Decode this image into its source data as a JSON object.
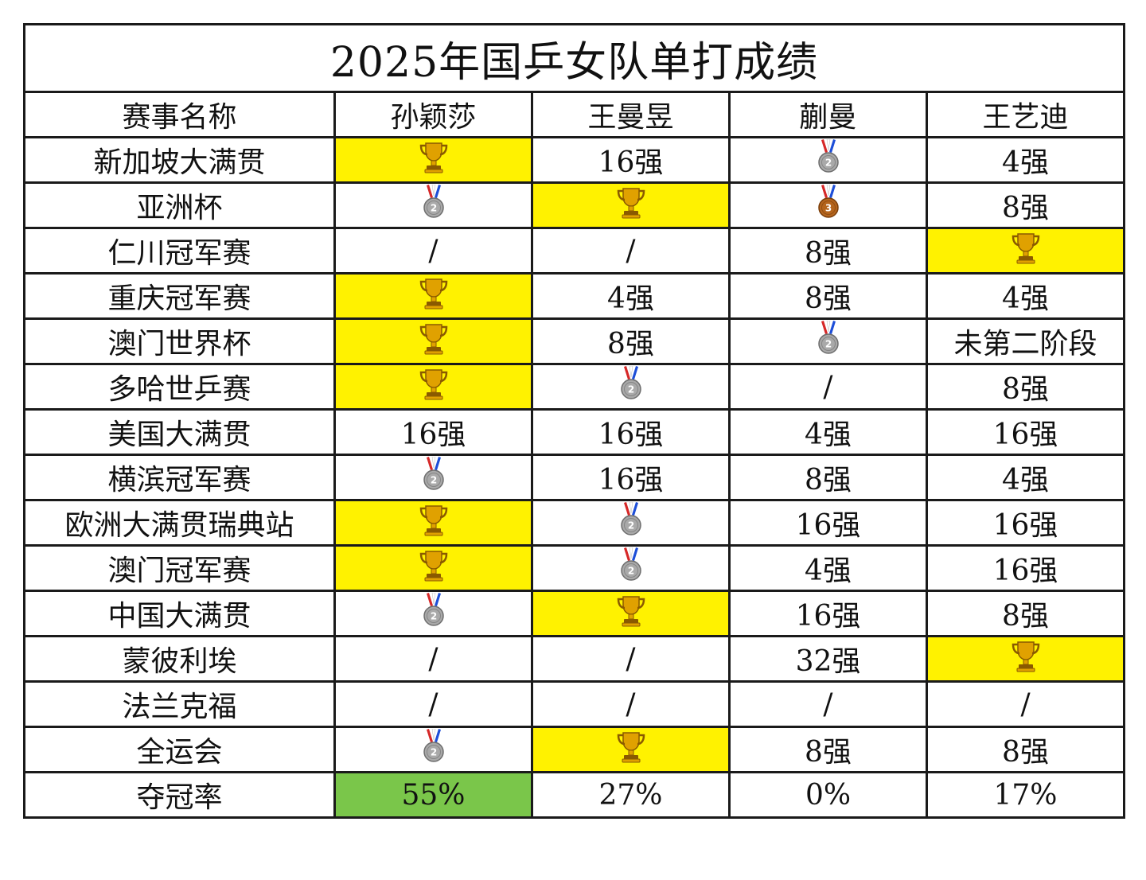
{
  "title": "2025年国乒女队单打成绩",
  "headers": [
    "赛事名称",
    "孙颖莎",
    "王曼昱",
    "蒯曼",
    "王艺迪"
  ],
  "rows": [
    {
      "event": "新加坡大满贯",
      "cells": [
        {
          "type": "trophy",
          "win": true
        },
        {
          "type": "text",
          "value": "16强"
        },
        {
          "type": "medal",
          "rank": "2"
        },
        {
          "type": "text",
          "value": "4强"
        }
      ]
    },
    {
      "event": "亚洲杯",
      "cells": [
        {
          "type": "medal",
          "rank": "2"
        },
        {
          "type": "trophy",
          "win": true
        },
        {
          "type": "medal",
          "rank": "3"
        },
        {
          "type": "text",
          "value": "8强"
        }
      ]
    },
    {
      "event": "仁川冠军赛",
      "cells": [
        {
          "type": "text",
          "value": "/"
        },
        {
          "type": "text",
          "value": "/"
        },
        {
          "type": "text",
          "value": "8强"
        },
        {
          "type": "trophy",
          "win": true
        }
      ]
    },
    {
      "event": "重庆冠军赛",
      "cells": [
        {
          "type": "trophy",
          "win": true
        },
        {
          "type": "text",
          "value": "4强"
        },
        {
          "type": "text",
          "value": "8强"
        },
        {
          "type": "text",
          "value": "4强"
        }
      ]
    },
    {
      "event": "澳门世界杯",
      "cells": [
        {
          "type": "trophy",
          "win": true
        },
        {
          "type": "text",
          "value": "8强"
        },
        {
          "type": "medal",
          "rank": "2"
        },
        {
          "type": "text",
          "value": "未第二阶段"
        }
      ]
    },
    {
      "event": "多哈世乒赛",
      "cells": [
        {
          "type": "trophy",
          "win": true
        },
        {
          "type": "medal",
          "rank": "2"
        },
        {
          "type": "text",
          "value": "/"
        },
        {
          "type": "text",
          "value": "8强"
        }
      ]
    },
    {
      "event": "美国大满贯",
      "cells": [
        {
          "type": "text",
          "value": "16强"
        },
        {
          "type": "text",
          "value": "16强"
        },
        {
          "type": "text",
          "value": "4强"
        },
        {
          "type": "text",
          "value": "16强"
        }
      ]
    },
    {
      "event": "横滨冠军赛",
      "cells": [
        {
          "type": "medal",
          "rank": "2"
        },
        {
          "type": "text",
          "value": "16强"
        },
        {
          "type": "text",
          "value": "8强"
        },
        {
          "type": "text",
          "value": "4强"
        }
      ]
    },
    {
      "event": "欧洲大满贯瑞典站",
      "cells": [
        {
          "type": "trophy",
          "win": true
        },
        {
          "type": "medal",
          "rank": "2"
        },
        {
          "type": "text",
          "value": "16强"
        },
        {
          "type": "text",
          "value": "16强"
        }
      ]
    },
    {
      "event": "澳门冠军赛",
      "cells": [
        {
          "type": "trophy",
          "win": true
        },
        {
          "type": "medal",
          "rank": "2"
        },
        {
          "type": "text",
          "value": "4强"
        },
        {
          "type": "text",
          "value": "16强"
        }
      ]
    },
    {
      "event": "中国大满贯",
      "cells": [
        {
          "type": "medal",
          "rank": "2"
        },
        {
          "type": "trophy",
          "win": true
        },
        {
          "type": "text",
          "value": "16强"
        },
        {
          "type": "text",
          "value": "8强"
        }
      ]
    },
    {
      "event": "蒙彼利埃",
      "cells": [
        {
          "type": "text",
          "value": "/"
        },
        {
          "type": "text",
          "value": "/"
        },
        {
          "type": "text",
          "value": "32强"
        },
        {
          "type": "trophy",
          "win": true
        }
      ]
    },
    {
      "event": "法兰克福",
      "cells": [
        {
          "type": "text",
          "value": "/"
        },
        {
          "type": "text",
          "value": "/"
        },
        {
          "type": "text",
          "value": "/"
        },
        {
          "type": "text",
          "value": "/"
        }
      ]
    },
    {
      "event": "全运会",
      "cells": [
        {
          "type": "medal",
          "rank": "2"
        },
        {
          "type": "trophy",
          "win": true
        },
        {
          "type": "text",
          "value": "8强"
        },
        {
          "type": "text",
          "value": "8强"
        }
      ]
    }
  ],
  "summary": {
    "label": "夺冠率",
    "values": [
      "55%",
      "27%",
      "0%",
      "17%"
    ],
    "highlight_index": 0
  },
  "colors": {
    "win_highlight": "#fff200",
    "rate_highlight": "#7ac64a",
    "gold": "#e0a100",
    "silver": "#a9a9a9",
    "bronze": "#b5651d"
  },
  "icons": {
    "trophy": "trophy-icon",
    "medal": "medal-icon"
  }
}
